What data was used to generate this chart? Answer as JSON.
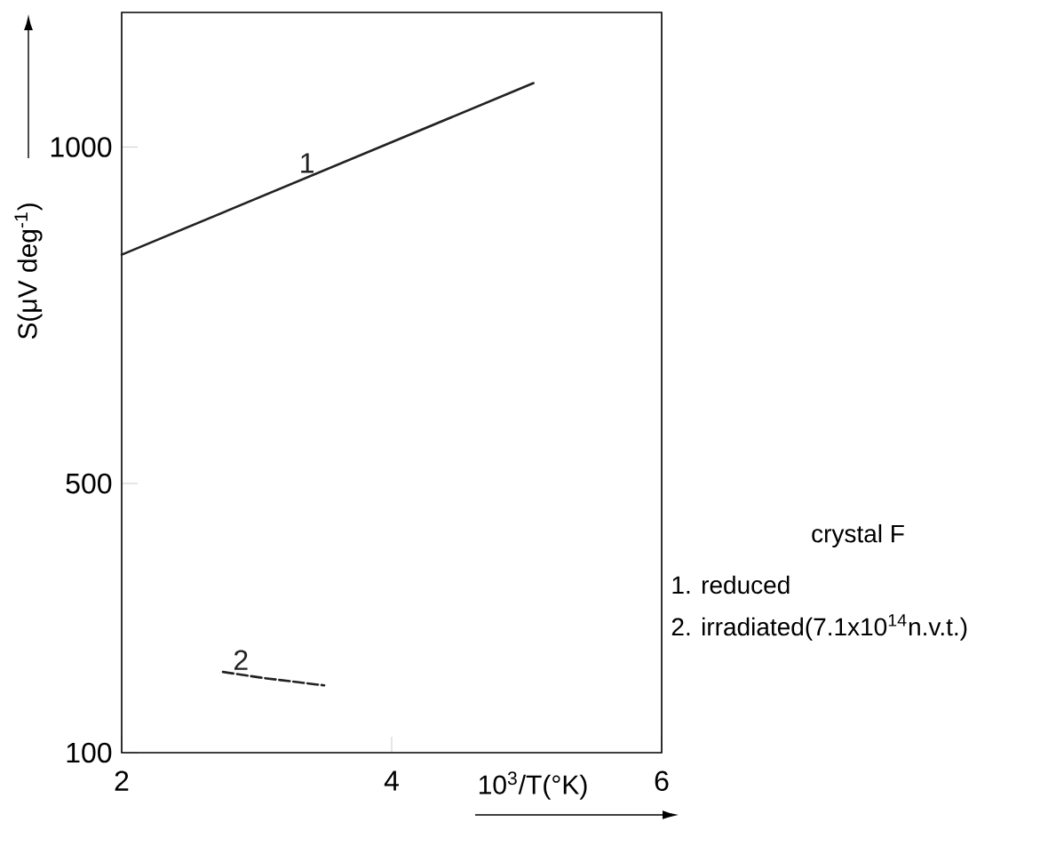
{
  "chart_data": {
    "type": "line",
    "xlabel": "10$^{3}$/T(°K)",
    "ylabel": "S(μV deg$^{-1}$)",
    "xlim": [
      2,
      6
    ],
    "xticks": [
      2,
      4,
      6
    ],
    "ylim": [
      100,
      1200
    ],
    "yticks": [
      100,
      500,
      1000
    ],
    "series": [
      {
        "name": "1",
        "color": "#222222",
        "x": [
          2,
          5.05
        ],
        "values": [
          840,
          1095
        ],
        "line_style": "solid"
      },
      {
        "name": "2",
        "color": "#222222",
        "x": [
          2.75,
          3.05,
          3.5
        ],
        "values": [
          220,
          211,
          200
        ],
        "line_style": "dashed"
      }
    ],
    "annotations": [
      "crystal F",
      "1. reduced",
      "2. irradiated(7.1x10$^{14}$n.v.t.)"
    ]
  }
}
